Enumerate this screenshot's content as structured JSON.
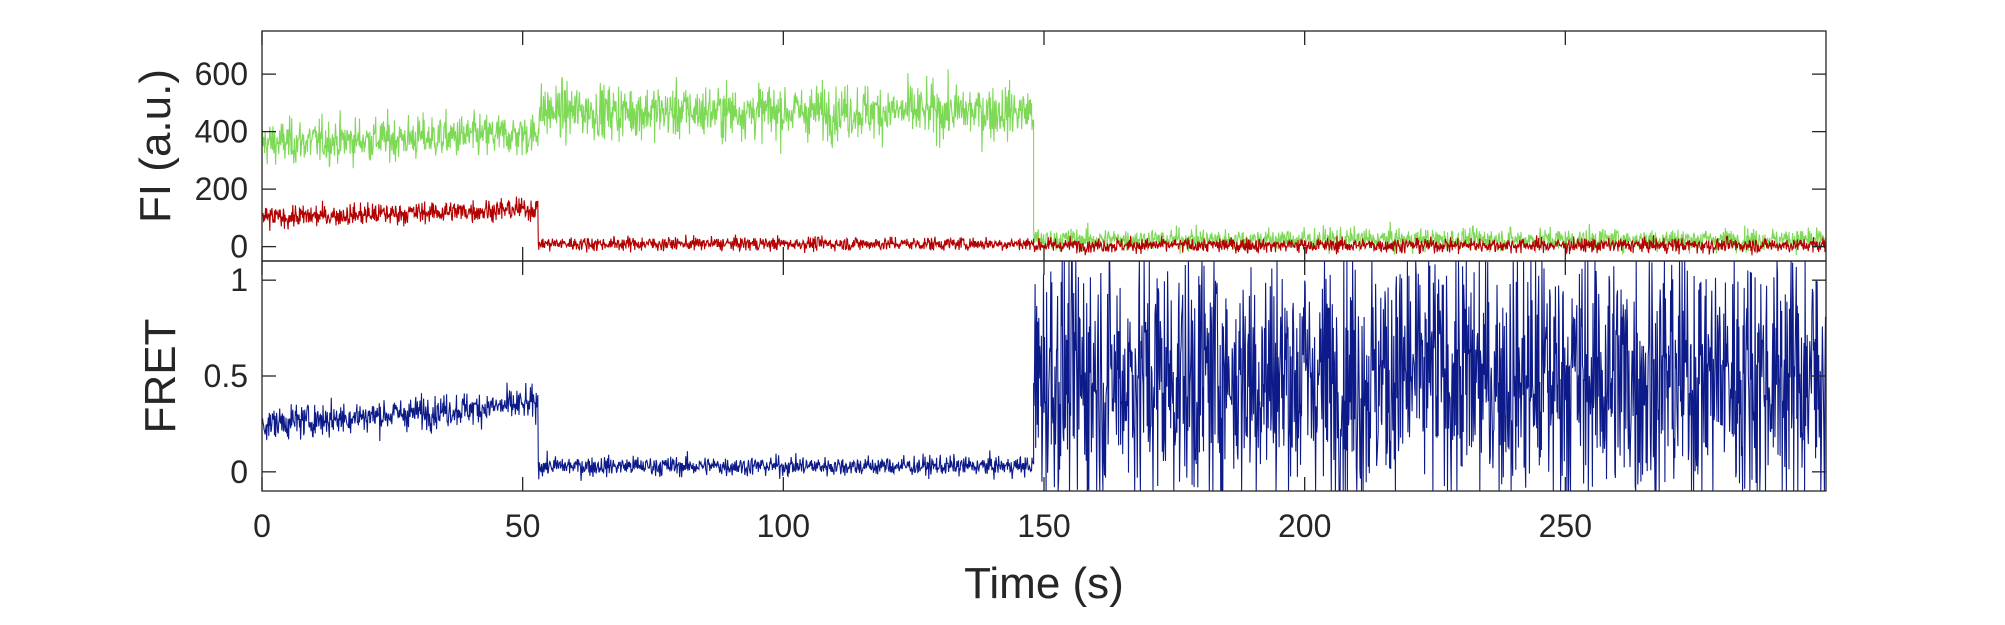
{
  "chart_data": [
    {
      "type": "line",
      "panel": "top",
      "ylabel": "FI (a.u.)",
      "xlim": [
        0,
        300
      ],
      "ylim": [
        -50,
        750
      ],
      "yticks": [
        0,
        200,
        400,
        600
      ],
      "ytick_labels": [
        "0",
        "200",
        "400",
        "600"
      ],
      "grid": false,
      "series": [
        {
          "color": "#7ed957",
          "segments": [
            {
              "x_start": 0,
              "x_end": 53,
              "mean": 360,
              "noise": 90,
              "trend": 0.6
            },
            {
              "x_start": 53,
              "x_end": 148,
              "mean": 470,
              "noise": 110,
              "trend": 0
            },
            {
              "x_start": 148,
              "x_end": 300,
              "mean": 25,
              "noise": 45,
              "trend": 0
            }
          ]
        },
        {
          "color": "#b30000",
          "segments": [
            {
              "x_start": 0,
              "x_end": 53,
              "mean": 100,
              "noise": 45,
              "trend": 0.6
            },
            {
              "x_start": 53,
              "x_end": 148,
              "mean": 10,
              "noise": 28,
              "trend": 0
            },
            {
              "x_start": 148,
              "x_end": 300,
              "mean": 5,
              "noise": 30,
              "trend": 0
            }
          ]
        }
      ]
    },
    {
      "type": "line",
      "panel": "bottom",
      "xlabel": "Time (s)",
      "ylabel": "FRET",
      "xlim": [
        0,
        300
      ],
      "ylim": [
        -0.1,
        1.1
      ],
      "xticks": [
        0,
        50,
        100,
        150,
        200,
        250
      ],
      "xtick_labels": [
        "0",
        "50",
        "100",
        "150",
        "200",
        "250"
      ],
      "yticks": [
        0,
        0.5,
        1
      ],
      "ytick_labels": [
        "0",
        "0.5",
        "1"
      ],
      "grid": false,
      "series": [
        {
          "color": "#0d1b8a",
          "segments": [
            {
              "x_start": 0,
              "x_end": 53,
              "mean": 0.25,
              "noise": 0.1,
              "trend": 0.002
            },
            {
              "x_start": 53,
              "x_end": 148,
              "mean": 0.03,
              "noise": 0.06,
              "trend": 0
            },
            {
              "x_start": 148,
              "x_end": 300,
              "mean": 0.5,
              "noise": 0.8,
              "trend": 0
            }
          ]
        }
      ]
    }
  ]
}
